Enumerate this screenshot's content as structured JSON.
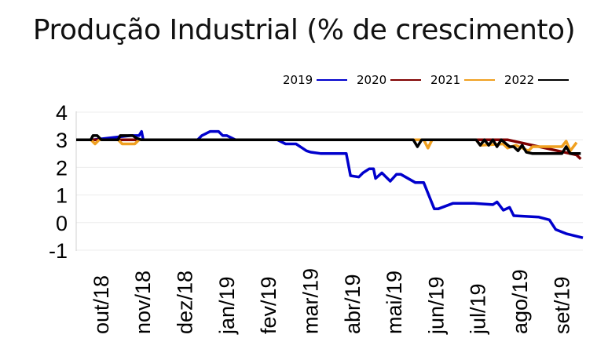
{
  "chart_data": {
    "type": "line",
    "title": "Produção Industrial (% de crescimento)",
    "xlabel": "",
    "ylabel": "",
    "ylim": [
      -1,
      4
    ],
    "yticks": [
      "4",
      "3",
      "2",
      "1",
      "0",
      "-1"
    ],
    "ytick_values": [
      4,
      3,
      2,
      1,
      0,
      -1
    ],
    "xlim": [
      0,
      12.1
    ],
    "categories": [
      "out/18",
      "nov/18",
      "dez/18",
      "jan/19",
      "fev/19",
      "mar/19",
      "abr/19",
      "mai/19",
      "jun/19",
      "jul/19",
      "ago/19",
      "set/19"
    ],
    "grid": true,
    "legend": "top-right",
    "series": [
      {
        "name": "2019",
        "color": "#0000cc",
        "x": [
          0,
          0.4,
          1.3,
          1.5,
          1.56,
          1.6,
          2.9,
          3.0,
          3.2,
          3.4,
          3.5,
          3.6,
          3.8,
          4.8,
          5.0,
          5.25,
          5.5,
          5.6,
          5.85,
          6.2,
          6.45,
          6.55,
          6.75,
          6.85,
          7.0,
          7.1,
          7.15,
          7.3,
          7.4,
          7.5,
          7.65,
          7.75,
          8.1,
          8.15,
          8.3,
          8.55,
          8.65,
          9.0,
          9.5,
          9.95,
          10.05,
          10.2,
          10.35,
          10.45,
          11.05,
          11.3,
          11.45,
          11.7,
          12.1
        ],
        "y": [
          3.0,
          3.0,
          3.15,
          3.15,
          3.3,
          3.0,
          3.0,
          3.15,
          3.3,
          3.3,
          3.15,
          3.15,
          3.0,
          3.0,
          2.85,
          2.85,
          2.6,
          2.55,
          2.5,
          2.5,
          2.5,
          1.7,
          1.65,
          1.8,
          1.95,
          1.95,
          1.6,
          1.8,
          1.65,
          1.5,
          1.75,
          1.75,
          1.45,
          1.45,
          1.45,
          0.5,
          0.5,
          0.7,
          0.7,
          0.65,
          0.75,
          0.45,
          0.55,
          0.25,
          0.2,
          0.1,
          -0.25,
          -0.4,
          -0.55
        ]
      },
      {
        "name": "2020",
        "color": "#800000",
        "x": [
          0,
          10.3,
          11.8,
          11.95,
          12.05
        ],
        "y": [
          3.0,
          3.0,
          2.5,
          2.45,
          2.3
        ]
      },
      {
        "name": "2021",
        "color": "#f0a020",
        "x": [
          0,
          0.35,
          0.45,
          0.55,
          1.0,
          1.1,
          1.4,
          1.5,
          8.3,
          8.4,
          8.5,
          9.55,
          9.65,
          10.2,
          10.3,
          10.5,
          10.8,
          10.9,
          11.6,
          11.7,
          11.8,
          11.95
        ],
        "y": [
          3.0,
          3.0,
          2.85,
          3.0,
          3.0,
          2.85,
          2.85,
          3.0,
          3.0,
          2.7,
          3.0,
          3.0,
          2.8,
          2.85,
          2.7,
          2.8,
          2.6,
          2.75,
          2.75,
          2.95,
          2.6,
          2.9
        ]
      },
      {
        "name": "2022",
        "color": "#000000",
        "x": [
          0,
          0.35,
          0.4,
          0.5,
          0.6,
          1.0,
          1.05,
          1.35,
          1.45,
          1.55,
          8.05,
          8.15,
          8.25,
          8.45,
          9.55,
          9.65,
          9.75,
          9.85,
          9.95,
          10.05,
          10.15,
          10.35,
          10.45,
          10.55,
          10.65,
          10.75,
          10.9,
          11.6,
          11.7,
          11.8,
          12.05
        ],
        "y": [
          3.0,
          3.0,
          3.15,
          3.15,
          3.0,
          3.0,
          3.15,
          3.15,
          3.05,
          3.0,
          3.0,
          2.75,
          3.0,
          3.0,
          3.0,
          2.8,
          3.0,
          2.8,
          3.0,
          2.75,
          3.0,
          2.75,
          2.75,
          2.6,
          2.8,
          2.55,
          2.5,
          2.5,
          2.75,
          2.5,
          2.5
        ]
      }
    ]
  }
}
